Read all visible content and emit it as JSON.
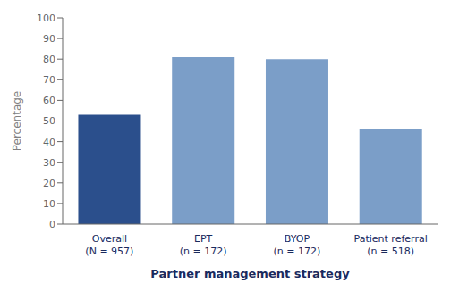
{
  "chart_data": {
    "type": "bar",
    "categories": [
      "Overall\n(N = 957)",
      "EPT\n(n = 172)",
      "BYOP\n(n = 172)",
      "Patient referral\n(n = 518)"
    ],
    "values": [
      53,
      81,
      80,
      46
    ],
    "colors": [
      "#2B4F8C",
      "#7B9EC8",
      "#7B9EC8",
      "#7B9EC8"
    ],
    "xlabel": "Partner management strategy",
    "ylabel": "Percentage",
    "ylim": [
      0,
      100
    ],
    "yticks": [
      0,
      10,
      20,
      30,
      40,
      50,
      60,
      70,
      80,
      90,
      100
    ],
    "grid": false
  }
}
